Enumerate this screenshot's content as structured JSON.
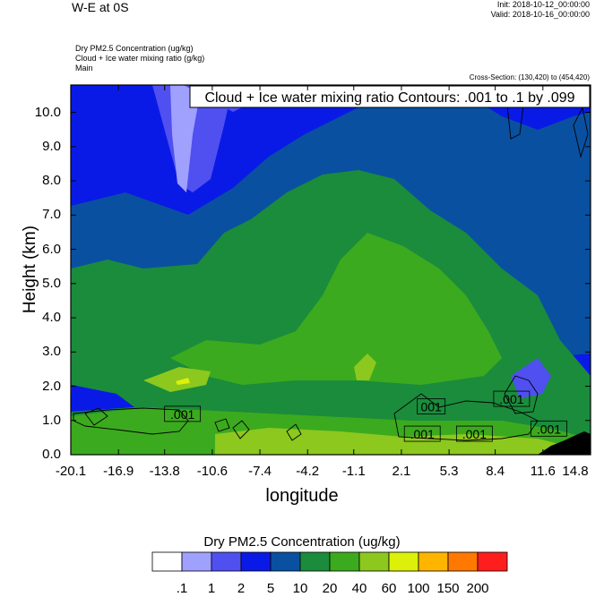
{
  "header": {
    "title_left": "W-E at 0S",
    "init": "Init: 2018-10-12_00:00:00",
    "valid": "Valid: 2018-10-16_00:00:00",
    "field_lines": [
      "Dry PM2.5 Concentration   (ug/kg)",
      "Cloud + Ice water mixing ratio   (g/kg)",
      "Main"
    ],
    "cross_section": "Cross-Section: (130,420) to (454,420)"
  },
  "chart_data": {
    "type": "heatmap",
    "contour_box": "Cloud + Ice water mixing ratio Contours: .001 to .1 by .099",
    "xlabel": "longitude",
    "ylabel": "Height (km)",
    "x_ticks": [
      "-20.1",
      "-16.9",
      "-13.8",
      "-10.6",
      "-7.4",
      "-4.2",
      "-1.1",
      "2.1",
      "5.3",
      "8.4",
      "11.6",
      "14.8"
    ],
    "y_ticks": [
      "0.0",
      "1.0",
      "2.0",
      "3.0",
      "4.0",
      "5.0",
      "6.0",
      "7.0",
      "8.0",
      "9.0",
      "10.0"
    ],
    "xlim": [
      -20.1,
      14.8
    ],
    "ylim": [
      0,
      10.8
    ],
    "contour_labels": [
      {
        "text": ".001",
        "x": -12.6,
        "y": 1.18
      },
      {
        "text": "001",
        "x": 4.1,
        "y": 1.4
      },
      {
        "text": ".001",
        "x": 3.5,
        "y": 0.6
      },
      {
        "text": ".001",
        "x": 7.0,
        "y": 0.6
      },
      {
        "text": ".001",
        "x": 9.5,
        "y": 1.62
      },
      {
        "text": ".001",
        "x": 12.0,
        "y": 0.75
      }
    ],
    "colorbar": {
      "title": "Dry PM2.5 Concentration  (ug/kg)",
      "levels": [
        ".1",
        "1",
        "2",
        "5",
        "10",
        "20",
        "40",
        "60",
        "100",
        "150",
        "200"
      ],
      "colors": [
        "#ffffff",
        "#a0a0ff",
        "#5050f0",
        "#0a1ae6",
        "#0a50a0",
        "#1a8c3c",
        "#3caa1e",
        "#8cc81e",
        "#dcf00a",
        "#ffb400",
        "#ff7800",
        "#ff1e1e"
      ]
    }
  }
}
